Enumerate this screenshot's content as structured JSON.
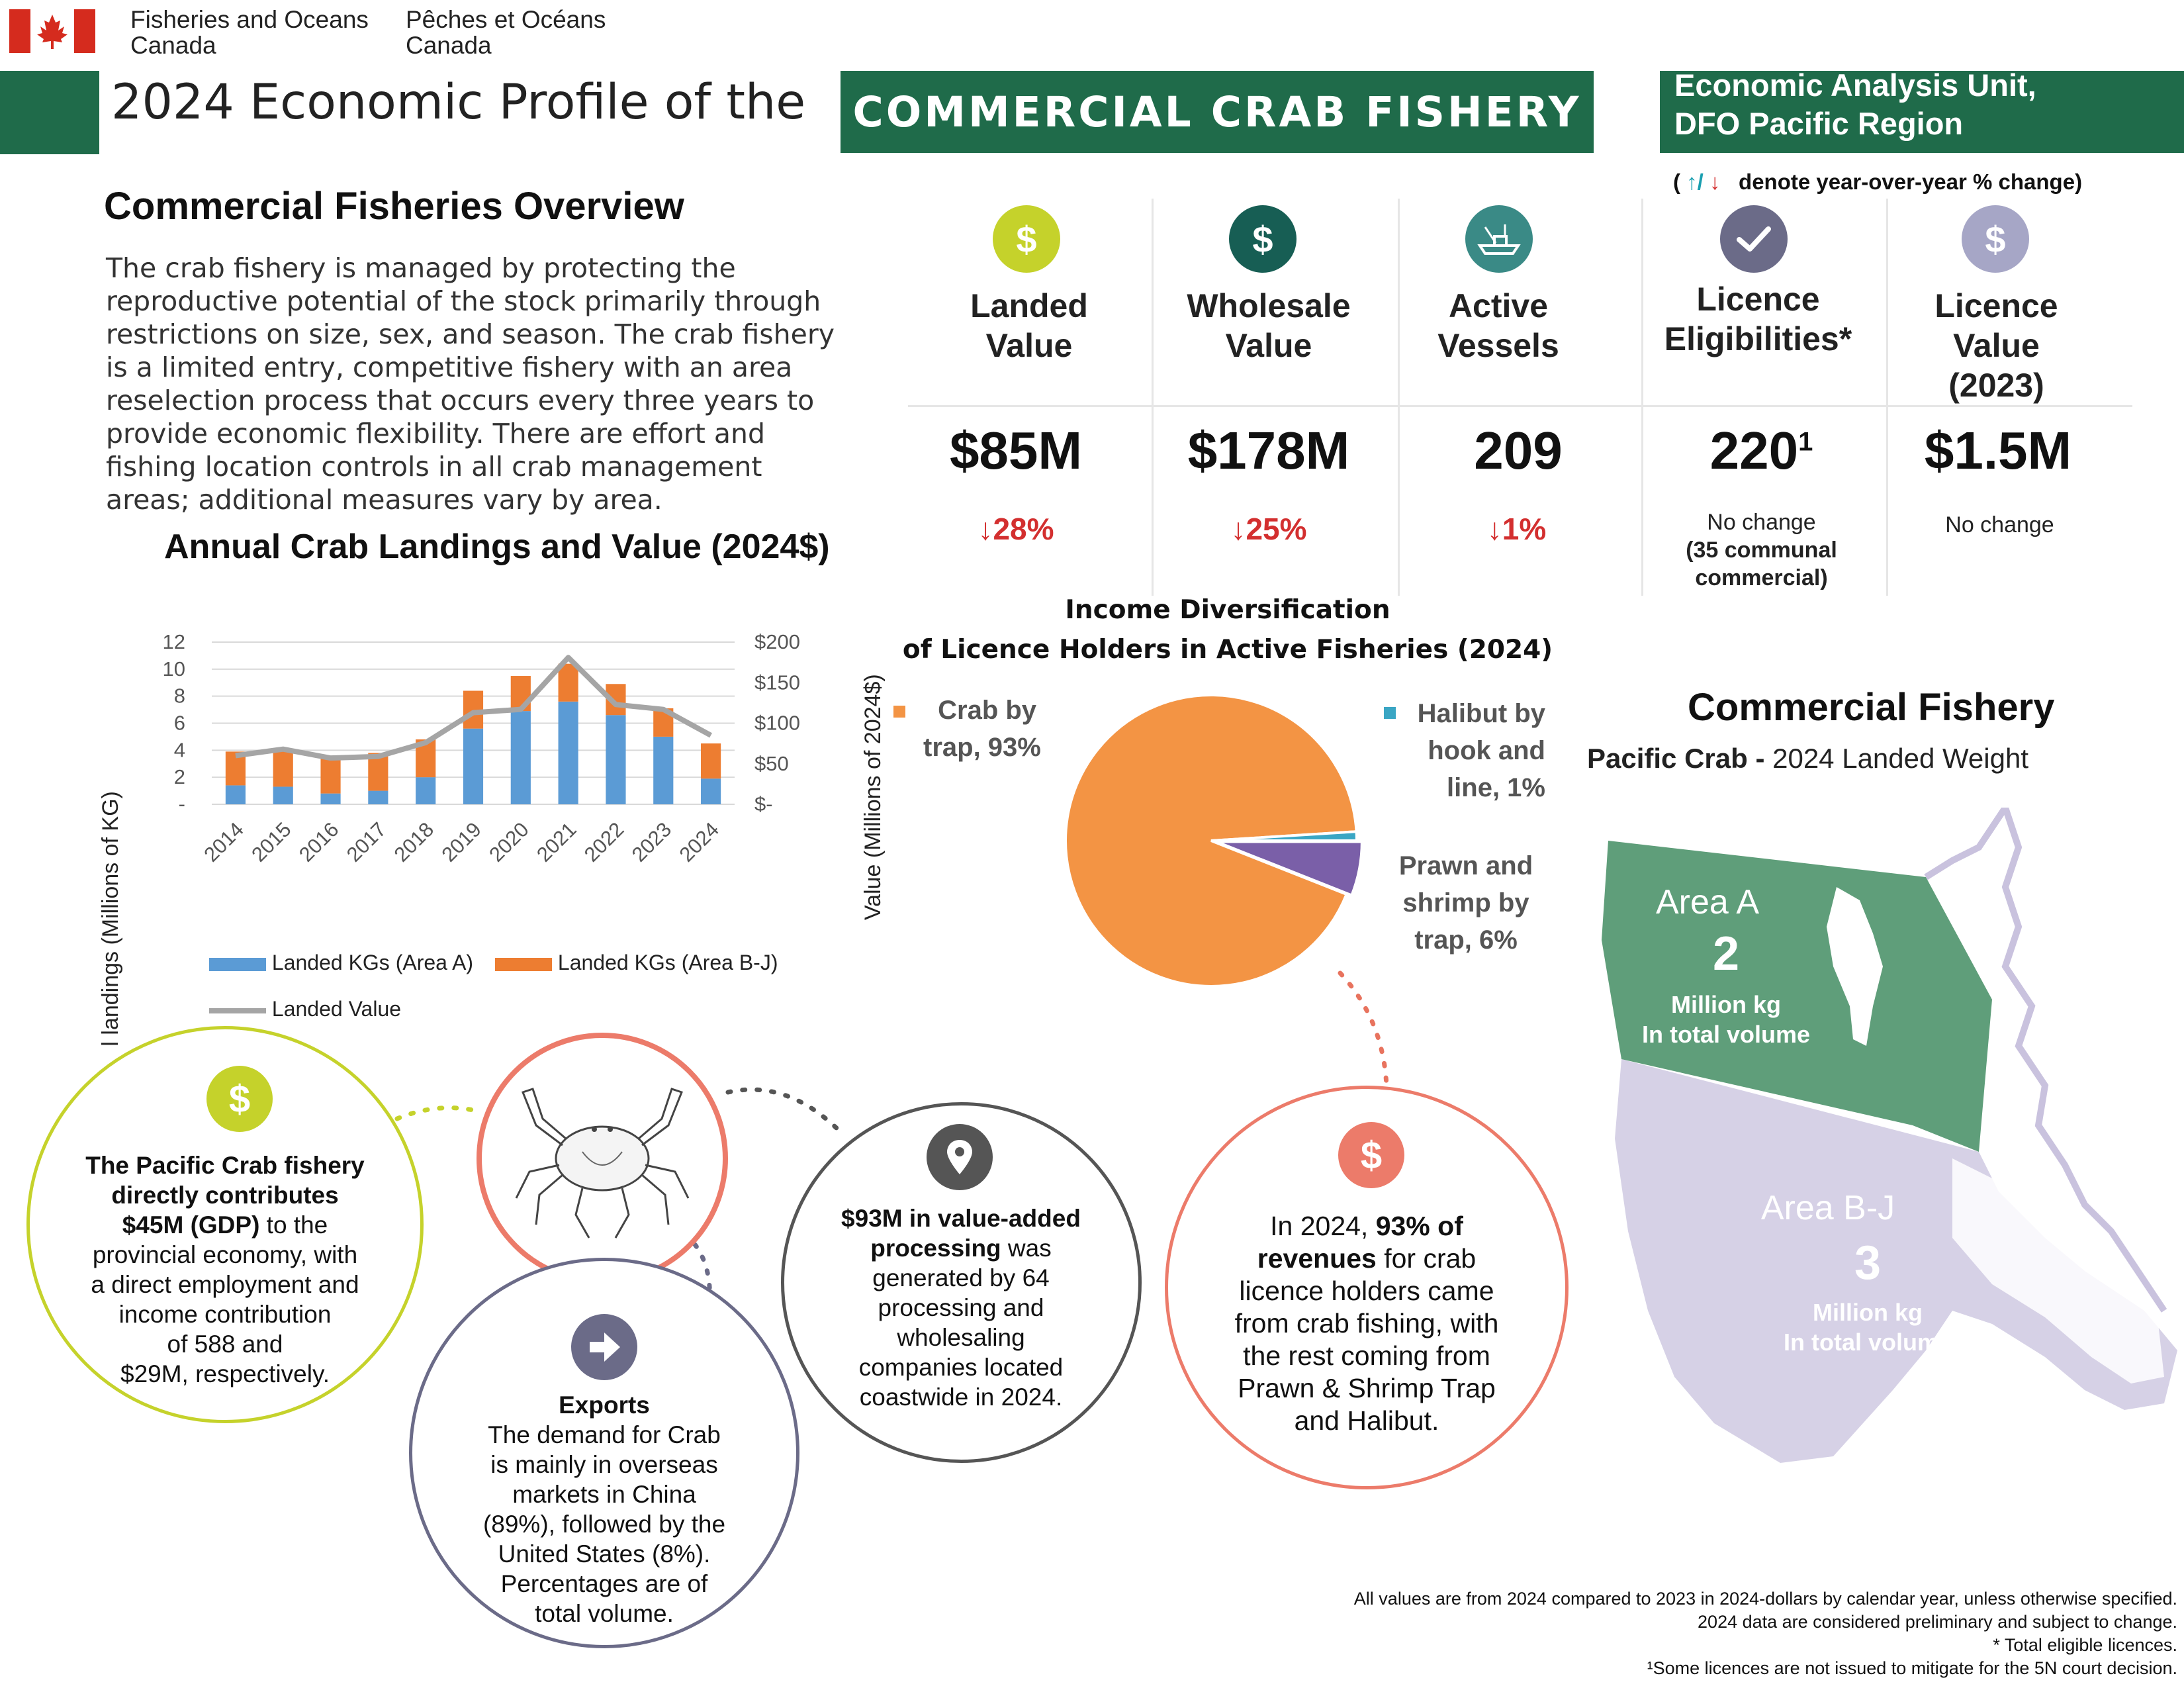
{
  "header": {
    "org_en_1": "Fisheries and Oceans",
    "org_en_2": "Canada",
    "org_fr_1": "Pêches et Océans",
    "org_fr_2": "Canada",
    "title_prefix": "2024 Economic Profile of the",
    "title_highlight": "COMMERCIAL CRAB FISHERY",
    "unit_line1": "Economic Analysis Unit,",
    "unit_line2": "DFO Pacific Region",
    "yoy_note_arrows_up": "↑",
    "yoy_note_slash": "/",
    "yoy_note_arrows_down": "↓",
    "yoy_note_text": "denote year-over-year % change)",
    "yoy_note_open": "("
  },
  "overview": {
    "heading": "Commercial Fisheries Overview",
    "body": "The crab fishery is managed by protecting the reproductive potential of the stock primarily through restrictions on size, sex, and season. The crab fishery is a limited entry, competitive fishery with an area reselection process that occurs every three years to provide economic flexibility. There are effort and fishing location controls in all crab management areas; additional measures vary by area."
  },
  "kpis": [
    {
      "icon": "dollar-icon",
      "label_1": "Landed",
      "label_2": "Value",
      "label_3": "",
      "value": "$85M",
      "change": "↓28%",
      "note": ""
    },
    {
      "icon": "dollar-icon",
      "label_1": "Wholesale",
      "label_2": "Value",
      "label_3": "",
      "value": "$178M",
      "change": "↓25%",
      "note": ""
    },
    {
      "icon": "vessel-icon",
      "label_1": "Active",
      "label_2": "Vessels",
      "label_3": "",
      "value": "209",
      "change": "↓1%",
      "note": ""
    },
    {
      "icon": "checkmark-icon",
      "label_1": "Licence",
      "label_2": "Eligibilities*",
      "label_3": "",
      "value": "220",
      "value_sup": "1",
      "change": "",
      "note_1": "No change",
      "note_2": "(35 communal",
      "note_3": "commercial)"
    },
    {
      "icon": "dollar-icon",
      "label_1": "Licence",
      "label_2": "Value",
      "label_3": "(2023)",
      "value": "$1.5M",
      "change": "",
      "note": "No change"
    }
  ],
  "colors": {
    "brand_green": "#1f6b4a",
    "lime": "#c5d22b",
    "teal_dark": "#175e54",
    "teal": "#3a8a86",
    "slate": "#6b6b88",
    "lavender": "#a6a6c6",
    "decrease_red": "#d32f2f",
    "area_a_blue": "#5b9bd5",
    "area_bj_orange": "#ed7d31",
    "value_grey": "#a5a5a5",
    "pie_orange": "#f39444",
    "pie_blue": "#3aa6c4",
    "pie_purple": "#7a5fa8"
  },
  "chart_data": [
    {
      "type": "bar",
      "title": "Annual Crab Landings and Value (2024$)",
      "categories": [
        "2014",
        "2015",
        "2016",
        "2017",
        "2018",
        "2019",
        "2020",
        "2021",
        "2022",
        "2023",
        "2024"
      ],
      "series": [
        {
          "name": "Landed KGs (Area A)",
          "axis": "left",
          "stacked": true,
          "values": [
            1.4,
            1.3,
            0.8,
            1.0,
            2.0,
            5.6,
            6.9,
            7.6,
            6.6,
            5.0,
            1.9
          ]
        },
        {
          "name": "Landed KGs (Area B-J)",
          "axis": "left",
          "stacked": true,
          "values": [
            2.5,
            2.7,
            2.6,
            2.8,
            2.8,
            2.8,
            2.6,
            2.8,
            2.3,
            2.1,
            2.6
          ]
        },
        {
          "name": "Landed Value",
          "axis": "right",
          "type": "line",
          "values": [
            60,
            68,
            57,
            59,
            76,
            113,
            117,
            181,
            123,
            117,
            85
          ]
        }
      ],
      "ylabel": "Total landings (Millions of KG)",
      "ylabel_right": "Value (Millions of 2024$)",
      "yticks": [
        "-",
        "2",
        "4",
        "6",
        "8",
        "10",
        "12"
      ],
      "yticks_right": [
        "$-",
        "$50",
        "$100",
        "$150",
        "$200"
      ],
      "ylim": [
        0,
        12
      ],
      "ylim_right": [
        0,
        200
      ],
      "grid": "horizontal",
      "legend": "bottom"
    },
    {
      "type": "pie",
      "title_1": "Income Diversification",
      "title_2": "of Licence Holders in Active Fisheries (2024)",
      "slices": [
        {
          "label_1": "Crab by",
          "label_2": "trap, 93%",
          "value": 93
        },
        {
          "label_1": "Halibut by",
          "label_2": "hook and",
          "label_3": "line, 1%",
          "value": 1
        },
        {
          "label_1": "Prawn and",
          "label_2": "shrimp by",
          "label_3": "trap, 6%",
          "value": 6
        }
      ]
    }
  ],
  "map": {
    "title": "Commercial Fishery",
    "subtitle_bold": "Pacific Crab - ",
    "subtitle": "2024 Landed Weight",
    "area_a_name": "Area A",
    "area_a_value": "2",
    "area_a_unit_1": "Million kg",
    "area_a_unit_2": "In total volume",
    "area_bj_name": "Area B-J",
    "area_bj_value": "3",
    "area_bj_unit_1": "Million kg",
    "area_bj_unit_2": "In total volume"
  },
  "bubbles": {
    "gdp": {
      "bold_1": "The Pacific Crab fishery",
      "bold_2": "directly contributes",
      "bold_3": "$45M (GDP)",
      "text_3": " to the",
      "text_4": "provincial economy, with",
      "text_5": "a direct employment and",
      "text_6": "income contribution",
      "text_7": "of 588 and",
      "text_8": "$29M, respectively."
    },
    "exports": {
      "title": "Exports",
      "text_1": "The demand for Crab",
      "text_2": "is mainly in overseas",
      "text_3": "markets in China",
      "text_4": "(89%), followed by the",
      "text_5": "United States (8%).",
      "text_6": "Percentages are of",
      "text_7": "total volume."
    },
    "processing": {
      "bold_1": "$93M in value-added",
      "bold_2": "processing",
      "text_2": " was",
      "text_3": "generated by 64",
      "text_4": "processing and",
      "text_5": "wholesaling",
      "text_6": "companies located",
      "text_7": "coastwide in 2024."
    },
    "revenue": {
      "text_1a": "In 2024, ",
      "bold_1": "93% of",
      "bold_2": "revenues",
      "text_2": " for crab",
      "text_3": "licence holders came",
      "text_4": "from crab fishing, with",
      "text_5": "the rest coming from",
      "text_6": "Prawn & Shrimp Trap",
      "text_7": "and Halibut."
    }
  },
  "footnotes": {
    "line1": "All values are from 2024 compared to 2023 in 2024-dollars by calendar year, unless otherwise specified.",
    "line2": "2024 data are considered preliminary and subject to change.",
    "line3": "* Total eligible licences.",
    "line4": "¹Some licences are not issued to mitigate for the 5N court decision."
  }
}
